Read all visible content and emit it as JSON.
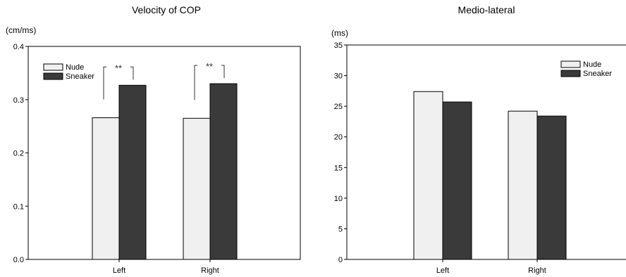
{
  "chart_data": [
    {
      "type": "bar",
      "title": "Velocity of COP",
      "ylabel": "(cm/ms)",
      "categories": [
        "Left",
        "Right"
      ],
      "series": [
        {
          "name": "Nude",
          "values": [
            0.266,
            0.265
          ],
          "color": "#f0f0f0"
        },
        {
          "name": "Sneaker",
          "values": [
            0.327,
            0.33
          ],
          "color": "#3a3a3a"
        }
      ],
      "ylim": [
        0,
        0.4
      ],
      "yticks": [
        "0.0",
        "0.1",
        "0.2",
        "0.3",
        "0.4"
      ],
      "significance": [
        "**",
        "**"
      ],
      "legend": "top-left",
      "grid": false
    },
    {
      "type": "bar",
      "title": "Medio-lateral",
      "ylabel": "(ms)",
      "categories": [
        "Left",
        "Right"
      ],
      "series": [
        {
          "name": "Nude",
          "values": [
            27.4,
            24.2
          ],
          "color": "#f0f0f0"
        },
        {
          "name": "Sneaker",
          "values": [
            25.7,
            23.4
          ],
          "color": "#3a3a3a"
        }
      ],
      "ylim": [
        0,
        35
      ],
      "yticks": [
        "0",
        "5",
        "10",
        "15",
        "20",
        "25",
        "30",
        "35"
      ],
      "legend": "top-right",
      "grid": false
    }
  ]
}
